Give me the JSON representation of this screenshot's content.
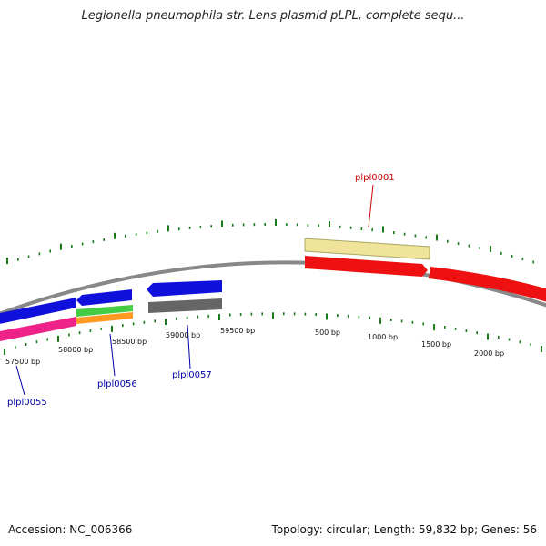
{
  "title": "Legionella pneumophila str. Lens plasmid pLPL, complete sequ...",
  "footer": {
    "accession": "Accession: NC_006366",
    "summary": "Topology: circular; Length: 59,832 bp; Genes: 56"
  },
  "tick_labels": [
    "57500 bp",
    "58000 bp",
    "58500 bp",
    "59000 bp",
    "59500 bp",
    "500 bp",
    "1000 bp",
    "1500 bp",
    "2000 bp"
  ],
  "genes": [
    {
      "name": "plpl0001",
      "color": "#cc0000"
    },
    {
      "name": "plpl0055",
      "color": "#0000aa"
    },
    {
      "name": "plpl0056",
      "color": "#0000aa"
    },
    {
      "name": "plpl0057",
      "color": "#0000aa"
    }
  ],
  "colors": {
    "backbone": "#888888",
    "ticks": "#1a7a1a",
    "forward_gene": "#ee1111",
    "reverse_gene": "#1111dd",
    "annotation_yellow": "#efe49a",
    "annotation_pink": "#ee2288",
    "annotation_green": "#44cc44",
    "annotation_orange": "#ff9922",
    "annotation_gray": "#666666"
  }
}
